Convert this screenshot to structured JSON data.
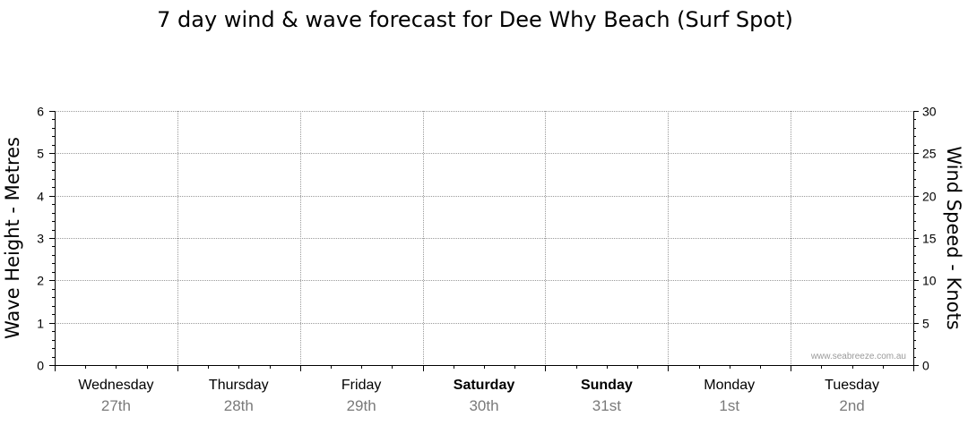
{
  "chart_data": {
    "type": "line",
    "title": "7 day wind & wave forecast for Dee Why Beach  (Surf Spot)",
    "y_left": {
      "label": "Wave Height - Metres",
      "range": [
        0,
        6
      ],
      "ticks": [
        "0",
        "1",
        "2",
        "3",
        "4",
        "5",
        "6"
      ]
    },
    "y_right": {
      "label": "Wind Speed - Knots",
      "range": [
        0,
        30
      ],
      "ticks": [
        "0",
        "5",
        "10",
        "15",
        "20",
        "25",
        "30"
      ]
    },
    "days": [
      {
        "name": "Wednesday",
        "date": "27th",
        "bold": false
      },
      {
        "name": "Thursday",
        "date": "28th",
        "bold": false
      },
      {
        "name": "Friday",
        "date": "29th",
        "bold": false
      },
      {
        "name": "Saturday",
        "date": "30th",
        "bold": true
      },
      {
        "name": "Sunday",
        "date": "31st",
        "bold": true
      },
      {
        "name": "Monday",
        "date": "1st",
        "bold": false
      },
      {
        "name": "Tuesday",
        "date": "2nd",
        "bold": false
      }
    ],
    "series": [],
    "grid": true,
    "watermark": "www.seabreeze.com.au",
    "colors": {
      "grid": "#9a9a9a",
      "axis": "#000000",
      "date_text": "#7a7a7a"
    }
  }
}
